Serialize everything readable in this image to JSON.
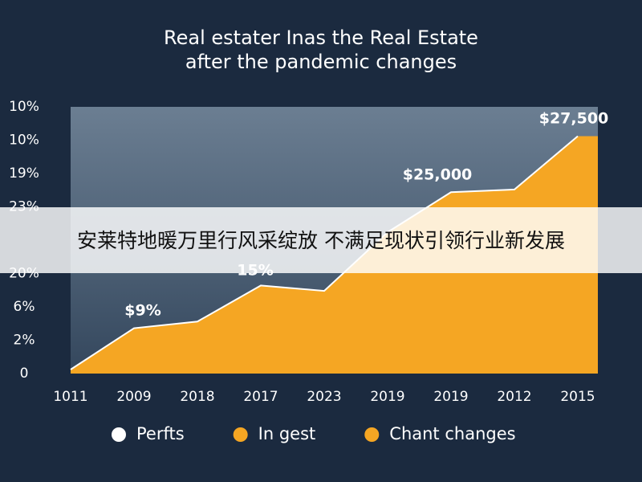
{
  "chart_data": {
    "type": "area",
    "title": "Real estater Inas the Real Estate",
    "subtitle": "after the pandemic changes",
    "categories": [
      "1011",
      "2009",
      "2018",
      "2017",
      "2023",
      "2019",
      "2019",
      "2012",
      "2015"
    ],
    "series": [
      {
        "name": "In gest",
        "color": "#f5a623",
        "values": [
          1.5,
          17,
          19.5,
          33,
          31,
          53,
          68,
          69,
          89
        ]
      }
    ],
    "ylim": [
      0,
      100
    ],
    "y_labels": [
      "0",
      "2%",
      "6%",
      "20%",
      null,
      "23%",
      "19%",
      "10%",
      "10%"
    ],
    "annotations": [
      "$27,500",
      "$25,000",
      "15%",
      "$9%"
    ],
    "legend": [
      {
        "name": "Perfts",
        "color": "#ffffff"
      },
      {
        "name": "In gest",
        "color": "#f5a623"
      },
      {
        "name": "Chant changes",
        "color": "#f5a623"
      }
    ],
    "banner": "安莱特地暖万里行风采绽放 不满足现状引领行业新发展"
  }
}
